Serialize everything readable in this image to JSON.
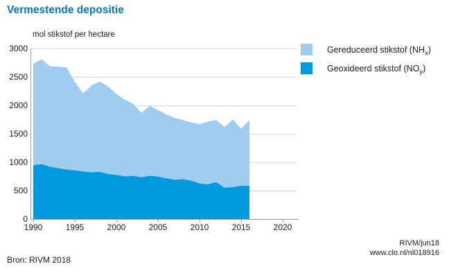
{
  "title": "Vermestende depositie",
  "legend": [
    {
      "prefix": "Gereduceerd stikstof (NH",
      "sub": "x",
      "suffix": ")",
      "color": "#9ecdf0"
    },
    {
      "prefix": "Geoxideerd stikstof (NO",
      "sub": "y",
      "suffix": ")",
      "color": "#029ade"
    }
  ],
  "footer": {
    "source": "Bron: RIVM 2018",
    "credit_line1": "RIVM/jun18",
    "credit_line2": "www.clo.nl/nl018916"
  },
  "chart_data": {
    "type": "area",
    "stacked": true,
    "title": "Vermestende depositie",
    "unit_label": "mol stikstof per hectare",
    "xlabel": "",
    "ylabel": "mol stikstof per hectare",
    "xlim": [
      1990,
      2020
    ],
    "ylim": [
      0,
      3000
    ],
    "grid": true,
    "legend_position": "right",
    "x_ticks": [
      1990,
      1995,
      2000,
      2005,
      2010,
      2015,
      2020
    ],
    "y_ticks": [
      0,
      500,
      1000,
      1500,
      2000,
      2500,
      3000
    ],
    "x": [
      1990,
      1991,
      1992,
      1993,
      1994,
      1995,
      1996,
      1997,
      1998,
      1999,
      2000,
      2001,
      2002,
      2003,
      2004,
      2005,
      2006,
      2007,
      2008,
      2009,
      2010,
      2011,
      2012,
      2013,
      2014,
      2015,
      2016
    ],
    "series": [
      {
        "name": "Geoxideerd stikstof (NOy)",
        "color": "#029ade",
        "values": [
          945,
          965,
          920,
          895,
          870,
          855,
          835,
          820,
          830,
          790,
          775,
          750,
          760,
          735,
          760,
          745,
          715,
          690,
          700,
          675,
          625,
          610,
          650,
          550,
          560,
          585,
          585
        ]
      },
      {
        "name": "Gereduceerd stikstof (NHx)",
        "color": "#9ecdf0",
        "values": [
          1785,
          1845,
          1770,
          1785,
          1800,
          1555,
          1375,
          1530,
          1590,
          1540,
          1425,
          1350,
          1270,
          1135,
          1230,
          1175,
          1125,
          1090,
          1040,
          1025,
          1045,
          1105,
          1090,
          1070,
          1190,
          1005,
          1155
        ]
      }
    ],
    "totals_note": "series are stacked; NOy bottom, NHx on top"
  }
}
